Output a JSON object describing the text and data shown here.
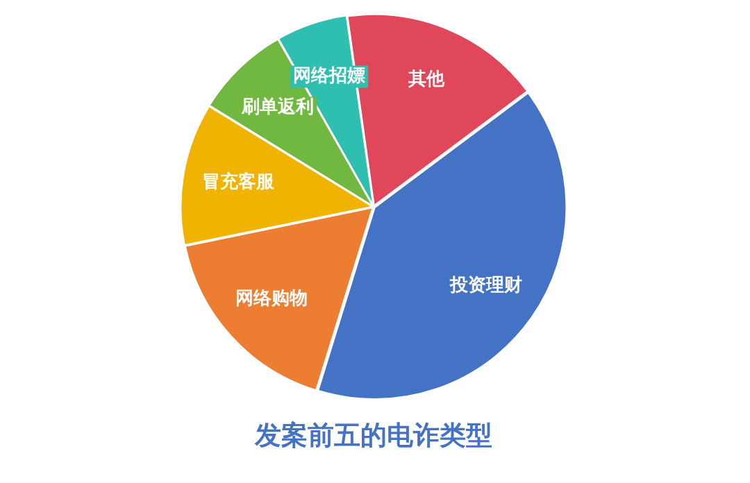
{
  "chart_data": {
    "type": "pie",
    "title": "发案前五的电诈类型",
    "categories": [
      "其他",
      "投资理财",
      "网络购物",
      "冒充客服",
      "刷单返利",
      "网络招嫖"
    ],
    "values": [
      17,
      40,
      17,
      12,
      8,
      6
    ],
    "colors": [
      "#e0475a",
      "#4472c4",
      "#ed7d31",
      "#f0b400",
      "#70b83f",
      "#2ebfb0"
    ],
    "legend": false
  }
}
